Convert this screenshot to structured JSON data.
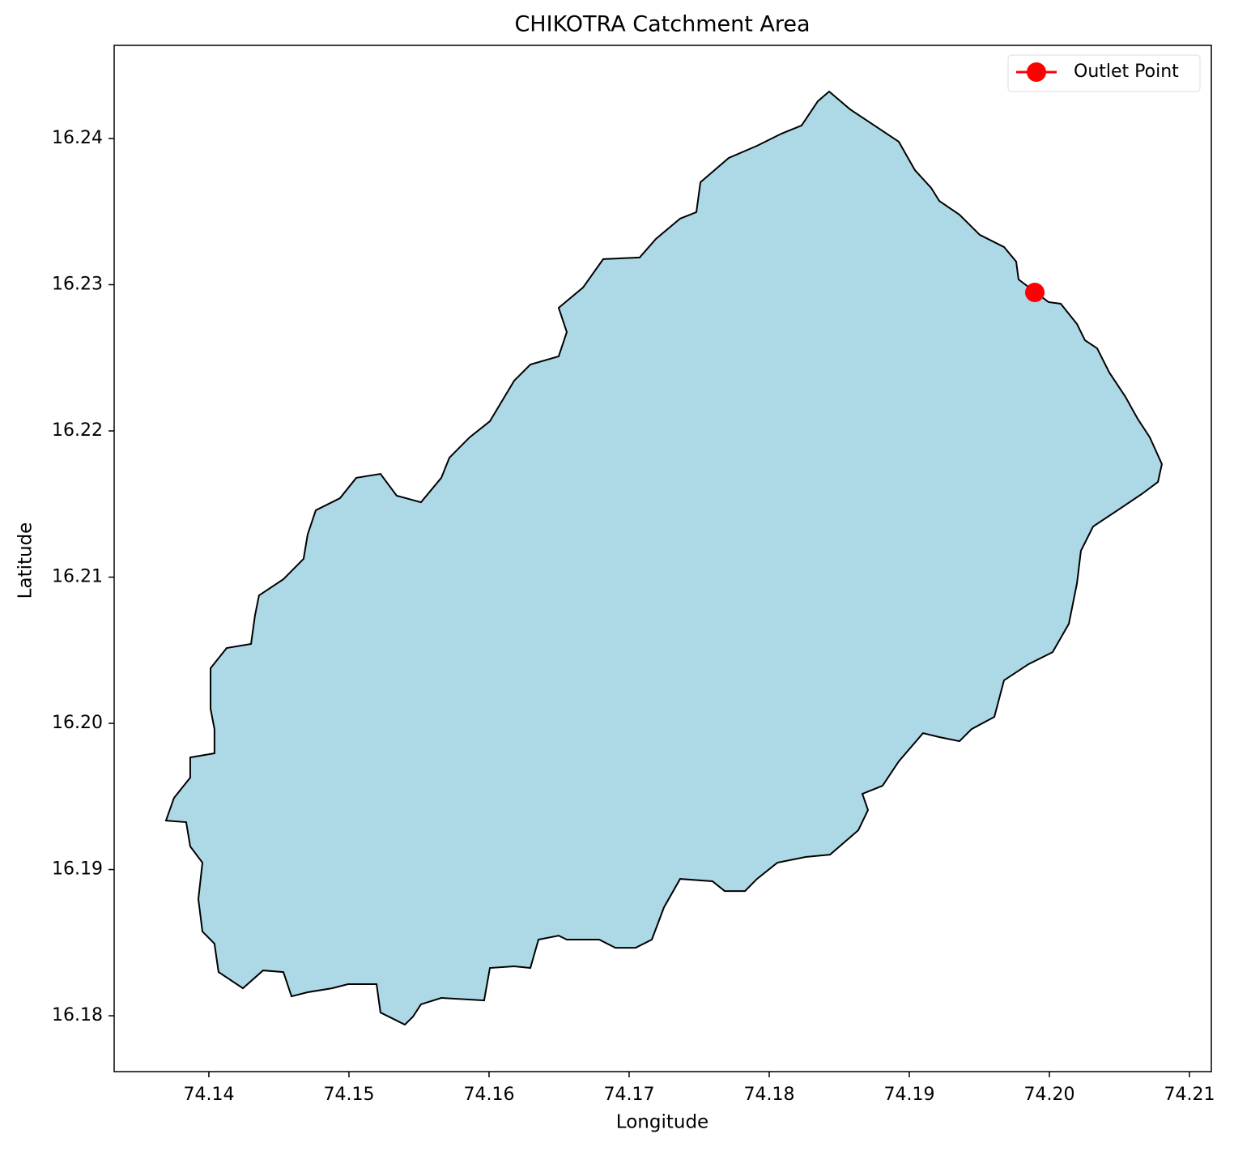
{
  "chart_data": {
    "type": "polygon",
    "title": "CHIKOTRA Catchment Area",
    "x_label": "Longitude",
    "y_label": "Latitude",
    "xlim": [
      74.13324,
      74.21156
    ],
    "ylim": [
      16.17618,
      16.24637
    ],
    "xticks": [
      74.14,
      74.15,
      74.16,
      74.17,
      74.18,
      74.19,
      {
        "value": 74.2,
        "label": "74.20"
      },
      74.21
    ],
    "yticks": [
      16.18,
      16.19,
      {
        "value": 16.2,
        "label": "16.20"
      },
      16.21,
      16.22,
      16.23,
      16.24
    ],
    "legend": "upper right",
    "area": {
      "color": "#add8e6",
      "edgecolor": "#000000",
      "x": [
        74.18428,
        74.18578,
        74.18751,
        74.18925,
        74.1904,
        74.19156,
        74.19214,
        74.19358,
        74.19503,
        74.19676,
        74.19763,
        74.1978,
        74.19994,
        74.20081,
        74.20197,
        74.20254,
        74.20341,
        74.20428,
        74.20543,
        74.2063,
        74.20717,
        74.20803,
        74.20775,
        74.20659,
        74.20486,
        74.20312,
        74.20225,
        74.20197,
        74.20139,
        74.20023,
        74.1985,
        74.19676,
        74.19607,
        74.19445,
        74.19358,
        74.19214,
        74.19098,
        74.18925,
        74.18809,
        74.18665,
        74.18705,
        74.18636,
        74.18434,
        74.1826,
        74.18058,
        74.17913,
        74.17827,
        74.17682,
        74.17595,
        74.17364,
        74.17249,
        74.17162,
        74.17046,
        74.16902,
        74.16786,
        74.16555,
        74.16497,
        74.16353,
        74.16295,
        74.16179,
        74.16006,
        74.15965,
        74.15659,
        74.15514,
        74.15457,
        74.15399,
        74.15225,
        74.15197,
        74.14994,
        74.14879,
        74.14705,
        74.1459,
        74.14532,
        74.14387,
        74.14243,
        74.14069,
        74.1404,
        74.13954,
        74.13925,
        74.13954,
        74.13867,
        74.13838,
        74.13694,
        74.13751,
        74.13867,
        74.13867,
        74.1404,
        74.1404,
        74.14012,
        74.14012,
        74.14127,
        74.14301,
        74.14329,
        74.14358,
        74.14532,
        74.14676,
        74.14705,
        74.14763,
        74.14936,
        74.15052,
        74.15225,
        74.15341,
        74.15514,
        74.15659,
        74.15717,
        74.15861,
        74.16006,
        74.16179,
        74.16295,
        74.16497,
        74.16555,
        74.16497,
        74.16671,
        74.16815,
        74.17075,
        74.17191,
        74.17364,
        74.1748,
        74.17509,
        74.17711,
        74.17913,
        74.18087,
        74.18231,
        74.18347
      ],
      "y": [
        16.24321,
        16.24199,
        16.24089,
        16.23978,
        16.23784,
        16.23662,
        16.23573,
        16.23479,
        16.23341,
        16.23258,
        16.23158,
        16.23036,
        16.22881,
        16.2287,
        16.22731,
        16.2262,
        16.22565,
        16.22399,
        16.22233,
        16.22083,
        16.21956,
        16.21773,
        16.21651,
        16.21568,
        16.21457,
        16.21346,
        16.2118,
        16.20958,
        16.20681,
        16.20487,
        16.20404,
        16.20294,
        16.20044,
        16.19961,
        16.19878,
        16.19906,
        16.19933,
        16.1974,
        16.19573,
        16.19518,
        16.19407,
        16.19269,
        16.19102,
        16.19086,
        16.19047,
        16.18936,
        16.18853,
        16.18853,
        16.1892,
        16.18936,
        16.18742,
        16.18521,
        16.18465,
        16.18465,
        16.18521,
        16.18521,
        16.18548,
        16.18521,
        16.18327,
        16.18338,
        16.18327,
        16.18105,
        16.18122,
        16.18078,
        16.17994,
        16.17939,
        16.18022,
        16.18216,
        16.18216,
        16.18188,
        16.18161,
        16.18133,
        16.18299,
        16.1831,
        16.18188,
        16.18299,
        16.18493,
        16.18576,
        16.18798,
        16.19047,
        16.19158,
        16.19324,
        16.19335,
        16.1949,
        16.19629,
        16.19767,
        16.19795,
        16.19961,
        16.201,
        16.20377,
        16.20515,
        16.20543,
        16.20737,
        16.20875,
        16.20986,
        16.21125,
        16.21291,
        16.21457,
        16.2154,
        16.21679,
        16.21706,
        16.21557,
        16.21512,
        16.21679,
        16.21817,
        16.21956,
        16.22066,
        16.22343,
        16.22454,
        16.2251,
        16.22676,
        16.22842,
        16.22981,
        16.23175,
        16.23186,
        16.23313,
        16.23452,
        16.23496,
        16.23701,
        16.23867,
        16.2395,
        16.24033,
        16.24089,
        16.24255
      ]
    },
    "series": [
      {
        "name": "Outlet Point",
        "color": "#ff0000",
        "x": [
          74.19896
        ],
        "y": [
          16.22947
        ]
      }
    ]
  }
}
